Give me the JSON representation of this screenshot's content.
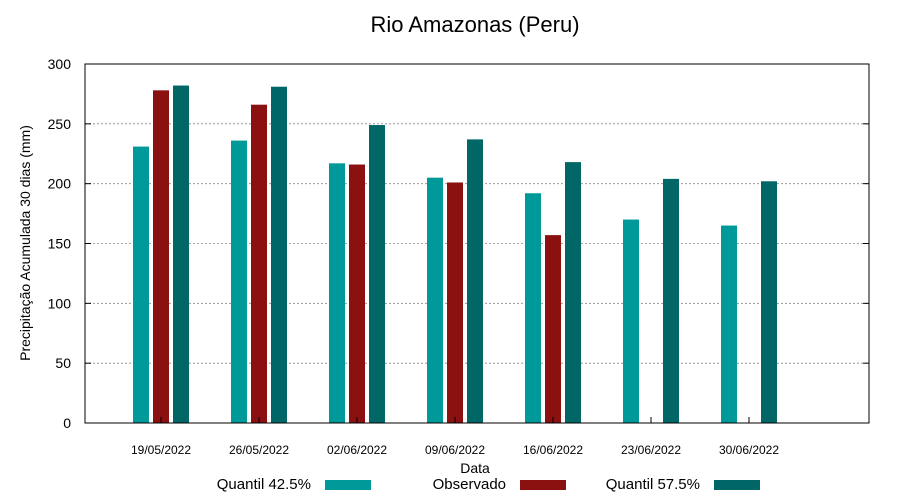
{
  "chart_data": {
    "type": "bar",
    "title": "Rio Amazonas (Peru)",
    "xlabel": "Data",
    "ylabel": "Precipitação Acumulada 30 dias (mm)",
    "ylim": [
      0,
      300
    ],
    "yticks": [
      0,
      50,
      100,
      150,
      200,
      250,
      300
    ],
    "grid": true,
    "legend_position": "bottom",
    "categories": [
      "19/05/2022",
      "26/05/2022",
      "02/06/2022",
      "09/06/2022",
      "16/06/2022",
      "23/06/2022",
      "30/06/2022"
    ],
    "series": [
      {
        "name": "Quantil 42.5%",
        "color": "#009999",
        "values": [
          231,
          236,
          217,
          205,
          192,
          170,
          165
        ]
      },
      {
        "name": "Observado",
        "color": "#8b1010",
        "values": [
          278,
          266,
          216,
          201,
          157,
          null,
          null
        ]
      },
      {
        "name": "Quantil 57.5%",
        "color": "#006666",
        "values": [
          282,
          281,
          249,
          237,
          218,
          204,
          202
        ]
      }
    ]
  }
}
